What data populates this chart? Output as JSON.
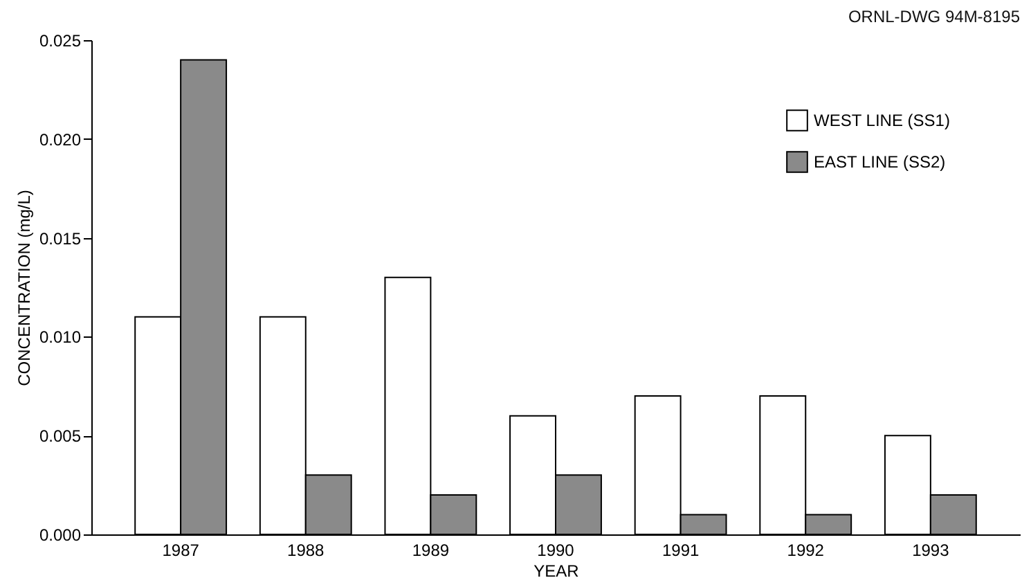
{
  "chart_data": {
    "type": "bar",
    "xlabel": "YEAR",
    "ylabel": "CONCENTRATION (mg/L)",
    "annotations": [
      "ORNL-DWG 94M-8195"
    ],
    "categories": [
      "1987",
      "1988",
      "1989",
      "1990",
      "1991",
      "1992",
      "1993"
    ],
    "series": [
      {
        "name": "WEST LINE (SS1)",
        "color": "#ffffff",
        "values": [
          0.011,
          0.011,
          0.013,
          0.006,
          0.007,
          0.007,
          0.005
        ]
      },
      {
        "name": "EAST LINE (SS2)",
        "color": "#8a8a8a",
        "values": [
          0.024,
          0.003,
          0.002,
          0.003,
          0.001,
          0.001,
          0.002
        ]
      }
    ],
    "ylim": [
      0,
      0.025
    ],
    "yticks": [
      {
        "value": 0,
        "label": "0.000"
      },
      {
        "value": 0.005,
        "label": "0.005"
      },
      {
        "value": 0.01,
        "label": "0.010"
      },
      {
        "value": 0.015,
        "label": "0.015"
      },
      {
        "value": 0.02,
        "label": "0.020"
      },
      {
        "value": 0.025,
        "label": "0.025"
      }
    ],
    "grid": false,
    "legend": "top right"
  }
}
